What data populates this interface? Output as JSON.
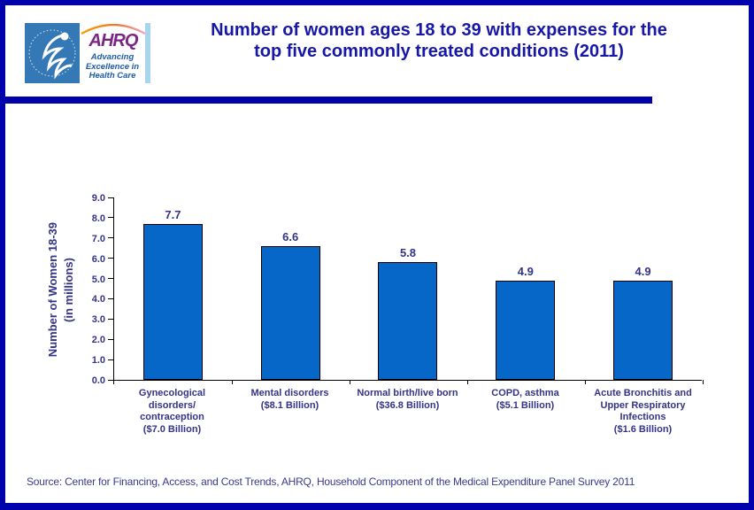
{
  "header": {
    "hhs_logo_alt": "Department of Health & Human Services seal",
    "ahrq": {
      "acronym": "AHRQ",
      "tagline": [
        "Advancing",
        "Excellence in",
        "Health Care"
      ]
    },
    "title_lines": [
      "Number of women ages 18 to 39 with expenses for the",
      "top five commonly treated conditions (2011)"
    ]
  },
  "chart_data": {
    "type": "bar",
    "title": "Number of women ages 18 to 39 with expenses for the top five commonly treated conditions (2011)",
    "categories": [
      "Gynecological disorders/ contraception ($7.0 Billion)",
      "Mental disorders ($8.1 Billion)",
      "Normal birth/live born ($36.8 Billion)",
      "COPD, asthma ($5.1 Billion)",
      "Acute Bronchitis and Upper Respiratory Infections ($1.6 Billion)"
    ],
    "category_lines": [
      [
        "Gynecological",
        "disorders/",
        "contraception",
        "($7.0 Billion)"
      ],
      [
        "Mental disorders",
        "($8.1 Billion)"
      ],
      [
        "Normal birth/live born",
        "($36.8 Billion)"
      ],
      [
        "COPD, asthma",
        "($5.1 Billion)"
      ],
      [
        "Acute Bronchitis and",
        "Upper Respiratory",
        "Infections",
        "($1.6 Billion)"
      ]
    ],
    "values": [
      7.7,
      6.6,
      5.8,
      4.9,
      4.9
    ],
    "value_labels": [
      "7.7",
      "6.6",
      "5.8",
      "4.9",
      "4.9"
    ],
    "expenses": [
      "$7.0 Billion",
      "$8.1 Billion",
      "$36.8 Billion",
      "$5.1 Billion",
      "$1.6 Billion"
    ],
    "xlabel": "",
    "ylabel_lines": [
      "Number of Women 18-39",
      "(in millions)"
    ],
    "y_ticks": [
      "0.0",
      "1.0",
      "2.0",
      "3.0",
      "4.0",
      "5.0",
      "6.0",
      "7.0",
      "8.0",
      "9.0"
    ],
    "ylim": [
      0,
      9
    ],
    "grid": false,
    "legend": false,
    "bar_color": "#0667C8",
    "bar_border_color": "#000000"
  },
  "source": "Source: Center for Financing, Access, and Cost Trends, AHRQ, Household Component of the Medical Expenditure Panel Survey 2011",
  "colors": {
    "frame_navy": "#0202AD",
    "title_navy": "#1717A8",
    "label_navy": "#333388",
    "hhs_blue": "#3478B6",
    "ahrq_purple": "#7B2585",
    "tagline_blue": "#1E5CA8"
  }
}
